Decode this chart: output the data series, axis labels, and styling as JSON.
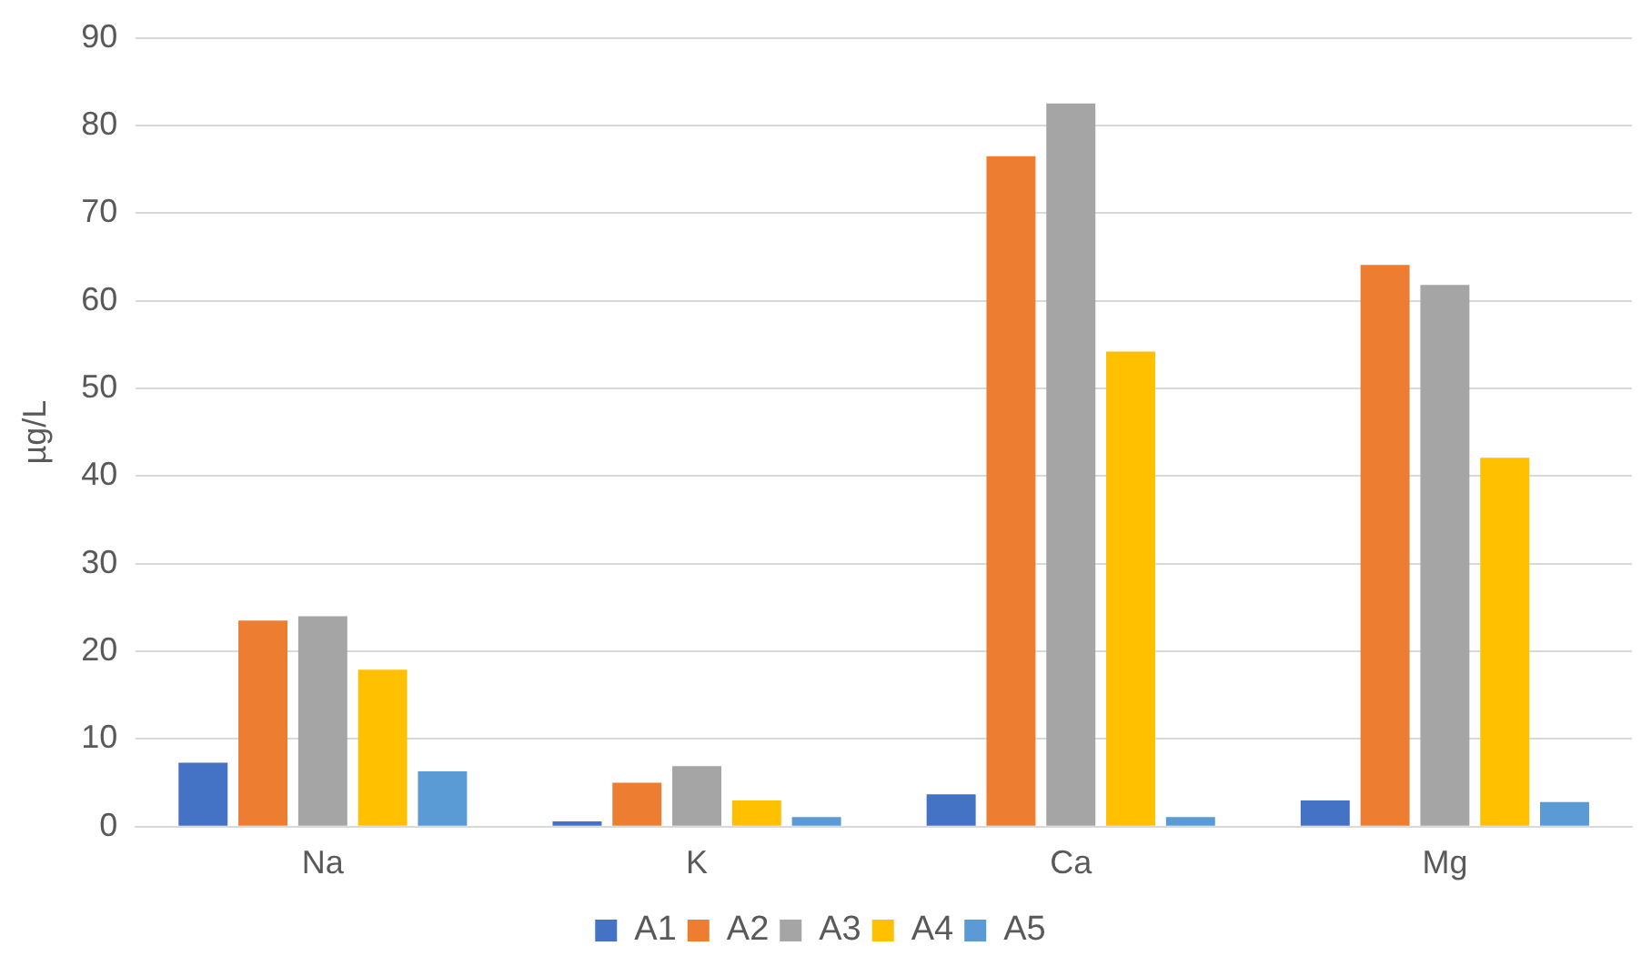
{
  "chart_data": {
    "type": "bar",
    "ylabel": "µg/L",
    "categories": [
      "Na",
      "K",
      "Ca",
      "Mg"
    ],
    "series": [
      {
        "name": "A1",
        "color": "#4472c4",
        "values": [
          7.3,
          0.6,
          3.7,
          3.0
        ]
      },
      {
        "name": "A2",
        "color": "#ed7d31",
        "values": [
          23.5,
          5.0,
          76.5,
          64.1
        ]
      },
      {
        "name": "A3",
        "color": "#a5a5a5",
        "values": [
          24.0,
          6.9,
          82.5,
          61.8
        ]
      },
      {
        "name": "A4",
        "color": "#ffc000",
        "values": [
          17.9,
          3.0,
          54.2,
          42.1
        ]
      },
      {
        "name": "A5",
        "color": "#5b9bd5",
        "values": [
          6.3,
          1.1,
          1.1,
          2.8
        ]
      }
    ],
    "ylim": [
      0,
      90
    ],
    "yticks": [
      0,
      10,
      20,
      30,
      40,
      50,
      60,
      70,
      80,
      90
    ],
    "grid": "y",
    "legend": "bottom"
  }
}
